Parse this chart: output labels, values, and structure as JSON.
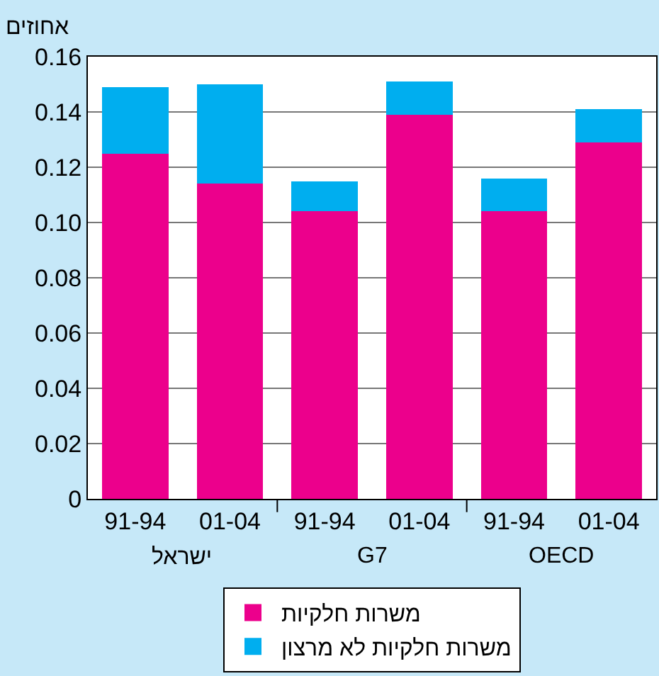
{
  "chart_data": {
    "type": "bar",
    "stacked": true,
    "ylabel": "אחוזים",
    "categories": [
      "91-94",
      "01-04",
      "91-94",
      "01-04",
      "91-94",
      "01-04"
    ],
    "annotations": [
      "ישראל",
      "G7",
      "OECD"
    ],
    "series": [
      {
        "name": "משרות חלקיות",
        "color": "#ec008c",
        "values": [
          0.125,
          0.114,
          0.104,
          0.139,
          0.104,
          0.129
        ]
      },
      {
        "name": "משרות חלקיות לא מרצון",
        "color": "#00aeef",
        "values": [
          0.024,
          0.036,
          0.011,
          0.012,
          0.012,
          0.012
        ]
      }
    ],
    "ylim": [
      0,
      0.16
    ],
    "yticks": [
      0,
      {
        "value": 0.02,
        "label": "0.02"
      },
      {
        "value": 0.04,
        "label": "0.04"
      },
      {
        "value": 0.06,
        "label": "0.06"
      },
      {
        "value": 0.08,
        "label": "0.08"
      },
      {
        "value": 0.1,
        "label": "0.10"
      },
      {
        "value": 0.12,
        "label": "0.12"
      },
      {
        "value": 0.14,
        "label": "0.14"
      },
      {
        "value": 0.16,
        "label": "0.16"
      }
    ],
    "grid": "y",
    "legend": "bottom"
  }
}
